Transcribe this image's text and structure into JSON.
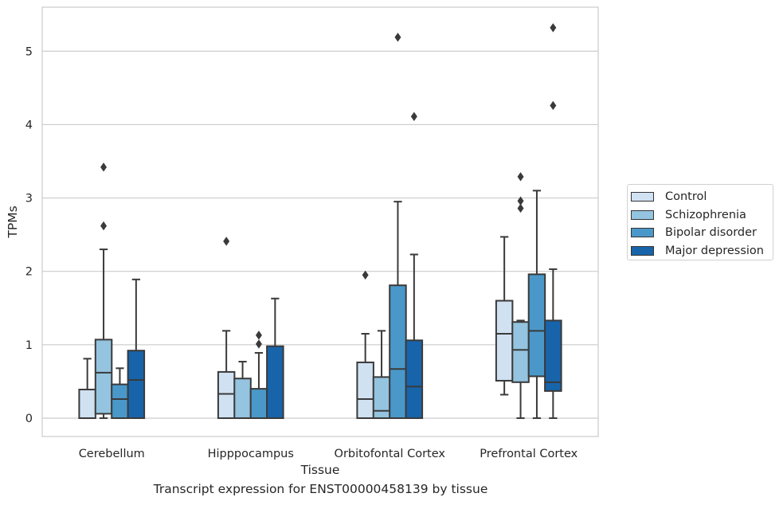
{
  "caption": "Transcript expression for ENST00000458139 by tissue",
  "chart_data": {
    "type": "box",
    "xlabel": "Tissue",
    "ylabel": "TPMs",
    "ylim": [
      -0.25,
      5.6
    ],
    "yticks": [
      0,
      1,
      2,
      3,
      4,
      5
    ],
    "grid": "horizontal",
    "legend_position": "right",
    "categories": [
      "Cerebellum",
      "Hipppocampus",
      "Orbitofontal Cortex",
      "Prefrontal Cortex"
    ],
    "series": [
      {
        "name": "Control",
        "color": "#d0e1f2",
        "boxes": [
          {
            "whislo": 0,
            "q1": 0,
            "med": 0,
            "q3": 0.39,
            "whishi": 0.81,
            "fliers": []
          },
          {
            "whislo": 0,
            "q1": 0,
            "med": 0.33,
            "q3": 0.63,
            "whishi": 1.19,
            "fliers": [
              2.41
            ]
          },
          {
            "whislo": 0,
            "q1": 0,
            "med": 0.26,
            "q3": 0.76,
            "whishi": 1.15,
            "fliers": [
              1.95
            ]
          },
          {
            "whislo": 0.32,
            "q1": 0.51,
            "med": 1.15,
            "q3": 1.6,
            "whishi": 2.47,
            "fliers": []
          }
        ]
      },
      {
        "name": "Schizophrenia",
        "color": "#94c4df",
        "boxes": [
          {
            "whislo": 0,
            "q1": 0.06,
            "med": 0.62,
            "q3": 1.07,
            "whishi": 2.3,
            "fliers": [
              2.62,
              3.42
            ]
          },
          {
            "whislo": 0,
            "q1": 0,
            "med": 0,
            "q3": 0.54,
            "whishi": 0.77,
            "fliers": []
          },
          {
            "whislo": 0,
            "q1": 0,
            "med": 0.1,
            "q3": 0.56,
            "whishi": 1.19,
            "fliers": []
          },
          {
            "whislo": 0,
            "q1": 0.49,
            "med": 0.93,
            "q3": 1.31,
            "whishi": 1.33,
            "fliers": [
              2.86,
              2.96,
              3.29
            ]
          }
        ]
      },
      {
        "name": "Bipolar disorder",
        "color": "#4a98c9",
        "boxes": [
          {
            "whislo": 0,
            "q1": 0,
            "med": 0.26,
            "q3": 0.46,
            "whishi": 0.68,
            "fliers": []
          },
          {
            "whislo": 0,
            "q1": 0,
            "med": 0,
            "q3": 0.4,
            "whishi": 0.89,
            "fliers": [
              1.01,
              1.13
            ]
          },
          {
            "whislo": 0,
            "q1": 0,
            "med": 0.67,
            "q3": 1.81,
            "whishi": 2.95,
            "fliers": [
              5.19
            ]
          },
          {
            "whislo": 0,
            "q1": 0.57,
            "med": 1.19,
            "q3": 1.96,
            "whishi": 3.1,
            "fliers": []
          }
        ]
      },
      {
        "name": "Major depression",
        "color": "#1764ab",
        "boxes": [
          {
            "whislo": 0,
            "q1": 0,
            "med": 0.52,
            "q3": 0.92,
            "whishi": 1.89,
            "fliers": []
          },
          {
            "whislo": 0,
            "q1": 0,
            "med": 0,
            "q3": 0.98,
            "whishi": 1.63,
            "fliers": []
          },
          {
            "whislo": 0,
            "q1": 0,
            "med": 0.43,
            "q3": 1.06,
            "whishi": 2.23,
            "fliers": [
              4.11
            ]
          },
          {
            "whislo": 0,
            "q1": 0.37,
            "med": 0.49,
            "q3": 1.33,
            "whishi": 2.03,
            "fliers": [
              4.26,
              5.32
            ]
          }
        ]
      }
    ]
  }
}
